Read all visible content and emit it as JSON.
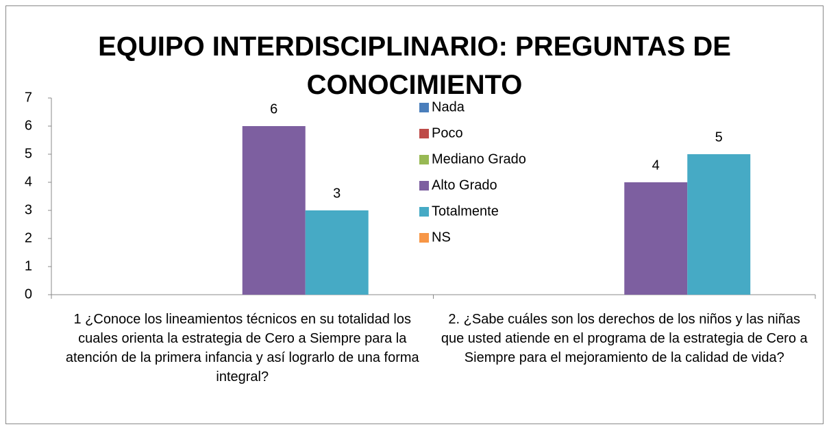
{
  "chart_data": {
    "type": "bar",
    "title": "EQUIPO INTERDISCIPLINARIO: PREGUNTAS DE CONOCIMIENTO",
    "categories": [
      "1 ¿Conoce los lineamientos técnicos  en su totalidad los cuales orienta la estrategia de Cero a Siempre para la atención de la primera infancia y así lograrlo de una forma integral?",
      "2. ¿Sabe cuáles son los derechos de los niños y las niñas que usted atiende en el programa de la estrategia de Cero a Siempre para el mejoramiento de la calidad de vida?"
    ],
    "series": [
      {
        "name": "Nada",
        "color": "#4a7ebb",
        "values": [
          null,
          null
        ]
      },
      {
        "name": "Poco",
        "color": "#be4b48",
        "values": [
          null,
          null
        ]
      },
      {
        "name": "Mediano Grado",
        "color": "#98b954",
        "values": [
          null,
          null
        ]
      },
      {
        "name": "Alto Grado",
        "color": "#7d5fa0",
        "values": [
          6,
          4
        ]
      },
      {
        "name": "Totalmente",
        "color": "#46aac5",
        "values": [
          3,
          5
        ]
      },
      {
        "name": "NS",
        "color": "#f79646",
        "values": [
          null,
          null
        ]
      }
    ],
    "ylim": [
      0,
      7
    ],
    "yticks": [
      0,
      1,
      2,
      3,
      4,
      5,
      6,
      7
    ],
    "grid": false,
    "legend": "right"
  }
}
